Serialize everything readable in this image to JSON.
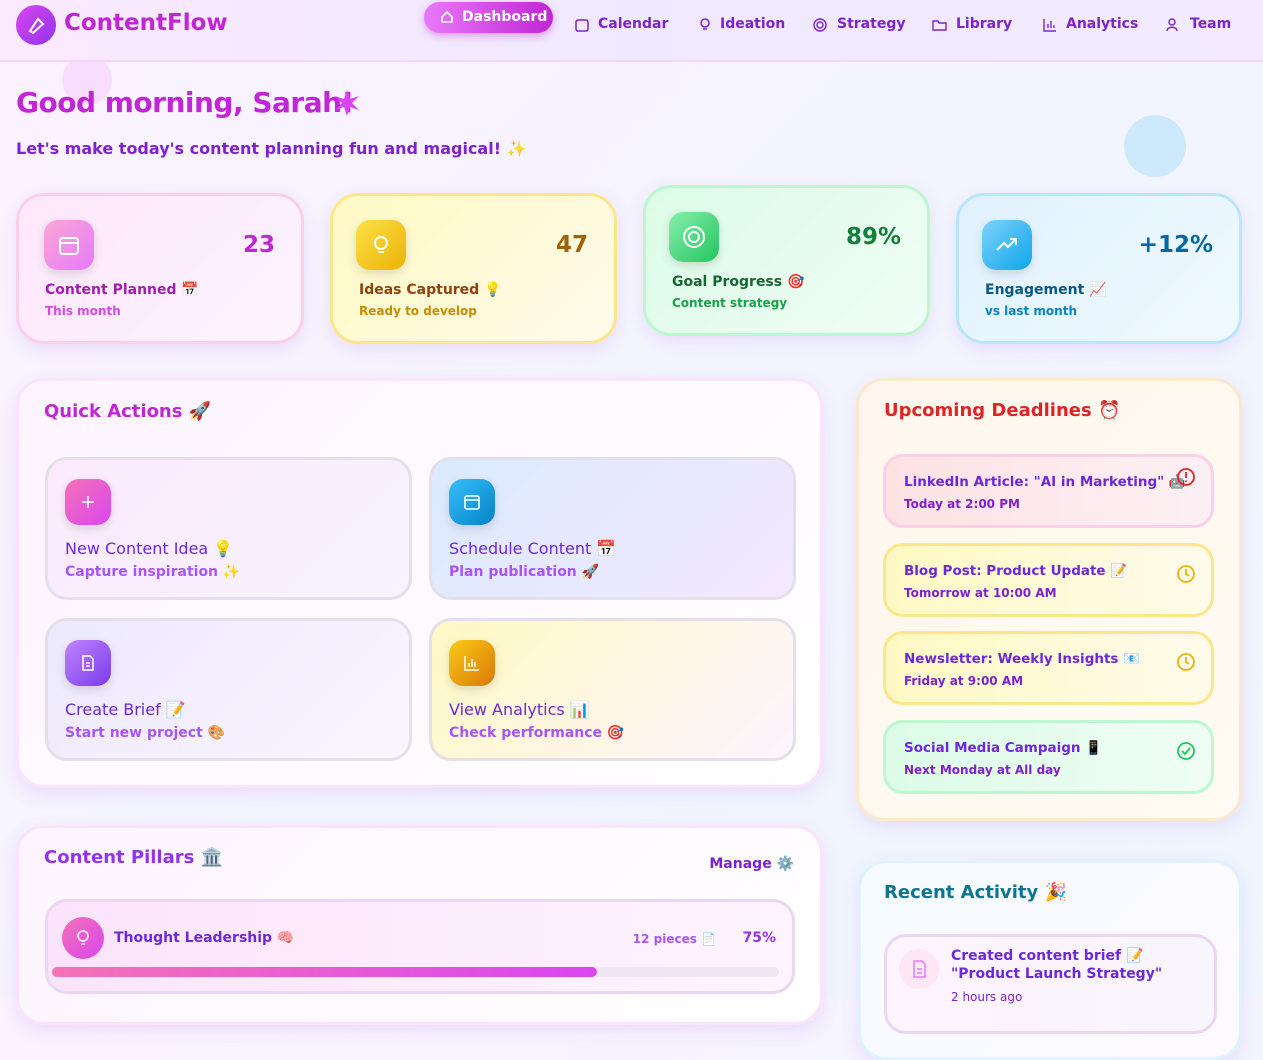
{
  "header": {
    "brand": "ContentFlow",
    "nav": [
      "Dashboard",
      "Calendar",
      "Ideation",
      "Strategy",
      "Library",
      "Analytics",
      "Team"
    ]
  },
  "greeting": {
    "title": "Good morning, Sarah!",
    "subtitle": "Let's make today's content planning fun and magical! ✨"
  },
  "stats": [
    {
      "value": "23",
      "label": "Content Planned 📅",
      "sub": "This month"
    },
    {
      "value": "47",
      "label": "Ideas Captured 💡",
      "sub": "Ready to develop"
    },
    {
      "value": "89%",
      "label": "Goal Progress 🎯",
      "sub": "Content strategy"
    },
    {
      "value": "+12%",
      "label": "Engagement 📈",
      "sub": "vs last month"
    }
  ],
  "quick_actions": {
    "title": "Quick Actions 🚀",
    "items": [
      {
        "title": "New Content Idea 💡",
        "sub": "Capture inspiration ✨"
      },
      {
        "title": "Schedule Content 📅",
        "sub": "Plan publication 🚀"
      },
      {
        "title": "Create Brief 📝",
        "sub": "Start new project 🎨"
      },
      {
        "title": "View Analytics 📊",
        "sub": "Check performance 🎯"
      }
    ]
  },
  "deadlines": {
    "title": "Upcoming Deadlines ⏰",
    "items": [
      {
        "title": "LinkedIn Article: \"AI in Marketing\" 🤖",
        "time": "Today at 2:00 PM"
      },
      {
        "title": "Blog Post: Product Update 📝",
        "time": "Tomorrow at 10:00 AM"
      },
      {
        "title": "Newsletter: Weekly Insights 📧",
        "time": "Friday at 9:00 AM"
      },
      {
        "title": "Social Media Campaign 📱",
        "time": "Next Monday at All day"
      }
    ]
  },
  "pillars": {
    "title": "Content Pillars 🏛️",
    "manage": "Manage ⚙️",
    "items": [
      {
        "name": "Thought Leadership 🧠",
        "count": "12 pieces 📄",
        "progress": {
          "value": 75,
          "label": "75%"
        }
      }
    ]
  },
  "activity": {
    "title": "Recent Activity 🎉",
    "items": [
      {
        "text": "Created content brief 📝 \"Product Launch Strategy\"",
        "time": "2 hours ago"
      }
    ]
  }
}
